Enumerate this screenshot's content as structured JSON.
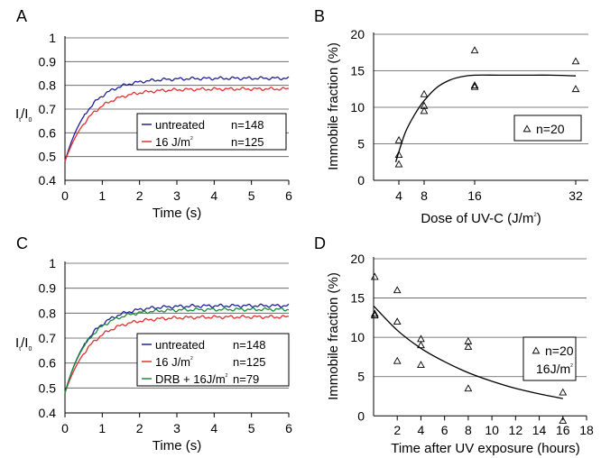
{
  "chart_data": [
    {
      "panel": "A",
      "type": "line",
      "title": "",
      "xlabel": "Time (s)",
      "ylabel": {
        "main": "I",
        "sub1": "t",
        "sep": "/I",
        "sub2": "0"
      },
      "xlim": [
        0,
        6
      ],
      "ylim": [
        0.4,
        1
      ],
      "xticks": [
        "0",
        "1",
        "2",
        "3",
        "4",
        "5",
        "6"
      ],
      "yticks": [
        "0.4",
        "0.5",
        "0.6",
        "0.7",
        "0.8",
        "0.9",
        "1"
      ],
      "grid": "horizontal",
      "legend": "bottom-right",
      "legend_entries": [
        {
          "label": "untreated",
          "n": "n=148",
          "color": "#1f1f9a"
        },
        {
          "label": "16 J/m",
          "sup": "2",
          "n": "n=125",
          "color": "#e03030"
        }
      ],
      "series": [
        {
          "color": "#1f1f9a",
          "plateau": 0.83,
          "rate": 1.55
        },
        {
          "color": "#e03030",
          "plateau": 0.785,
          "rate": 1.45
        }
      ]
    },
    {
      "panel": "B",
      "type": "scatter",
      "title": "",
      "xlabel": {
        "main": "Dose of UV-C (J/m",
        "sup": "2",
        "end": ")"
      },
      "ylabel": "Immobile fraction (%)",
      "xlim": [
        0,
        34
      ],
      "ylim": [
        0,
        20
      ],
      "xticks": [
        "4",
        "8",
        "16",
        "32"
      ],
      "xtick_values": [
        4,
        8,
        16,
        32
      ],
      "yticks": [
        "0",
        "5",
        "10",
        "15",
        "20"
      ],
      "grid": "horizontal",
      "legend": "right",
      "legend_entries": [
        {
          "label": "n=20",
          "marker": "triangle"
        }
      ],
      "points": [
        {
          "x": 4,
          "y": 5.5
        },
        {
          "x": 4,
          "y": 3.5
        },
        {
          "x": 4,
          "y": 2.2
        },
        {
          "x": 8,
          "y": 11.8
        },
        {
          "x": 8,
          "y": 10.2
        },
        {
          "x": 8,
          "y": 9.5
        },
        {
          "x": 16,
          "y": 17.8
        },
        {
          "x": 16,
          "y": 13
        },
        {
          "x": 16,
          "y": 12.8
        },
        {
          "x": 32,
          "y": 16.3
        },
        {
          "x": 32,
          "y": 12.5
        }
      ],
      "fit_curve": {
        "x": [
          3.5,
          5,
          6.5,
          8,
          10,
          12,
          14,
          16,
          20,
          24,
          28,
          32
        ],
        "y": [
          2.5,
          6.5,
          9,
          10.9,
          12.7,
          13.7,
          14.2,
          14.4,
          14.4,
          14.4,
          14.4,
          14.3
        ]
      }
    },
    {
      "panel": "C",
      "type": "line",
      "title": "",
      "xlabel": "Time (s)",
      "ylabel": {
        "main": "I",
        "sub1": "t",
        "sep": "/I",
        "sub2": "0"
      },
      "xlim": [
        0,
        6
      ],
      "ylim": [
        0.4,
        1
      ],
      "xticks": [
        "0",
        "1",
        "2",
        "3",
        "4",
        "5",
        "6"
      ],
      "yticks": [
        "0.4",
        "0.5",
        "0.6",
        "0.7",
        "0.8",
        "0.9",
        "1"
      ],
      "grid": "horizontal",
      "legend": "bottom-right",
      "legend_entries": [
        {
          "label": "untreated",
          "n": "n=148",
          "color": "#1f1f9a"
        },
        {
          "label": "16 J/m",
          "sup": "2",
          "n": "n=125",
          "color": "#e03030"
        },
        {
          "label": "DRB + 16J/m",
          "sup": "2",
          "n": "n=79",
          "color": "#1a8a3a"
        }
      ],
      "series": [
        {
          "color": "#1f1f9a",
          "plateau": 0.83,
          "rate": 1.55
        },
        {
          "color": "#e03030",
          "plateau": 0.785,
          "rate": 1.45
        },
        {
          "color": "#1a8a3a",
          "plateau": 0.815,
          "rate": 1.6
        }
      ]
    },
    {
      "panel": "D",
      "type": "scatter",
      "title": "",
      "xlabel": "Time after UV exposure (hours)",
      "ylabel": "Immobile fraction (%)",
      "xlim": [
        0,
        18
      ],
      "ylim": [
        -1,
        20
      ],
      "xticks": [
        "2",
        "4",
        "6",
        "8",
        "10",
        "12",
        "14",
        "16",
        "18"
      ],
      "xtick_values": [
        2,
        4,
        6,
        8,
        10,
        12,
        14,
        16,
        18
      ],
      "yticks": [
        "0",
        "5",
        "10",
        "15",
        "20"
      ],
      "grid": "horizontal",
      "legend": "right",
      "legend_entries": [
        {
          "label": "n=20",
          "marker": "triangle"
        },
        {
          "label": "16J/m",
          "sup": "2"
        }
      ],
      "points": [
        {
          "x": 0.1,
          "y": 17.7
        },
        {
          "x": 0.1,
          "y": 13
        },
        {
          "x": 0.1,
          "y": 12.8
        },
        {
          "x": 2,
          "y": 16
        },
        {
          "x": 2,
          "y": 12
        },
        {
          "x": 2,
          "y": 7
        },
        {
          "x": 4,
          "y": 9.8
        },
        {
          "x": 4,
          "y": 9
        },
        {
          "x": 4,
          "y": 6.5
        },
        {
          "x": 8,
          "y": 9.5
        },
        {
          "x": 8,
          "y": 8.8
        },
        {
          "x": 8,
          "y": 3.5
        },
        {
          "x": 16,
          "y": 3
        },
        {
          "x": 16,
          "y": -0.6
        }
      ],
      "fit_curve": {
        "x": [
          0,
          2,
          4,
          6,
          8,
          10,
          12,
          14,
          16
        ],
        "y": [
          14,
          10.9,
          8.6,
          6.9,
          5.5,
          4.4,
          3.5,
          2.8,
          2.2
        ]
      }
    }
  ],
  "panel_labels": [
    "A",
    "B",
    "C",
    "D"
  ]
}
